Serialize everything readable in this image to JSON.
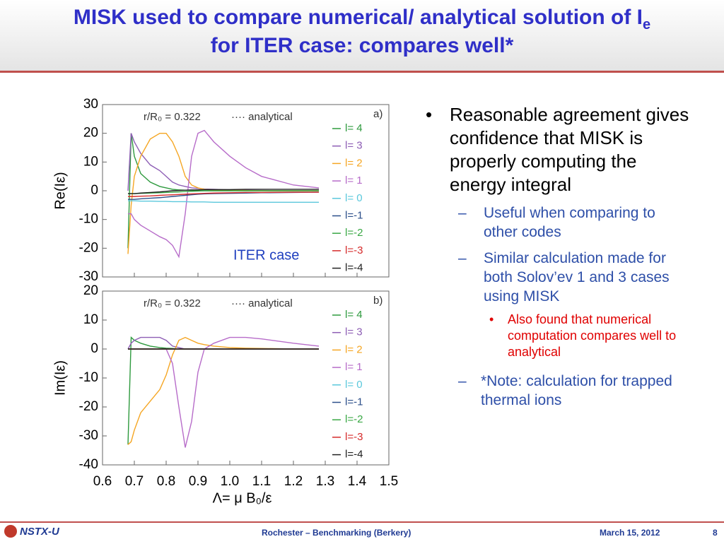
{
  "header": {
    "title": "MISK used to compare numerical/ analytical solution of I",
    "title_sub": "e",
    "title_line2": "for ITER case: compares well*"
  },
  "chart_data": [
    {
      "type": "line",
      "panel_label": "a)",
      "radius_label": "r/R₀ = 0.322",
      "analytical_label": "···· analytical",
      "note": "ITER case",
      "y_label": "Re(Iε)",
      "xlim": [
        0.6,
        1.5
      ],
      "xticks": [
        0.6,
        0.7,
        0.8,
        0.9,
        1,
        1.1,
        1.2,
        1.3,
        1.4,
        1.5
      ],
      "ylim": [
        -30,
        30
      ],
      "yticks": [
        -30,
        -20,
        -10,
        0,
        10,
        20,
        30
      ],
      "x": [
        0.68,
        0.69,
        0.7,
        0.72,
        0.75,
        0.78,
        0.8,
        0.82,
        0.84,
        0.86,
        0.88,
        0.9,
        0.92,
        0.95,
        1.0,
        1.05,
        1.1,
        1.2,
        1.28
      ],
      "series": [
        {
          "name": "l= 4",
          "color": "#2e9a3e",
          "values": [
            -20,
            20,
            12,
            6,
            3,
            1.5,
            1,
            0.5,
            0.3,
            0.2,
            0.1,
            0,
            0,
            0,
            0,
            0,
            0,
            0,
            0
          ]
        },
        {
          "name": "l= 3",
          "color": "#8e5fb5",
          "values": [
            0,
            20,
            17,
            13,
            9,
            7,
            5,
            3,
            2,
            1.5,
            1,
            0.8,
            0.6,
            0.5,
            0.3,
            0.2,
            0.1,
            0,
            0
          ]
        },
        {
          "name": "l= 2",
          "color": "#f5a623",
          "values": [
            -22,
            -5,
            5,
            12,
            18,
            20,
            20,
            17,
            12,
            5,
            2,
            1,
            0.5,
            0.3,
            0.2,
            0.1,
            0,
            0,
            0
          ]
        },
        {
          "name": "l= 1",
          "color": "#b76cc9",
          "values": [
            -8,
            -8,
            -10,
            -12,
            -14,
            -16,
            -17,
            -19,
            -23,
            -8,
            12,
            20,
            21,
            17,
            12,
            8,
            5,
            2,
            1
          ]
        },
        {
          "name": "l= 0",
          "color": "#5bc8dc",
          "values": [
            -3.5,
            -3.5,
            -3.5,
            -3.6,
            -3.6,
            -3.7,
            -3.7,
            -3.8,
            -3.8,
            -3.8,
            -3.9,
            -3.9,
            -3.9,
            -4,
            -4,
            -4,
            -4,
            -4,
            -4
          ]
        },
        {
          "name": "l=-1",
          "color": "#2c4f8a",
          "values": [
            -3,
            -3,
            -3,
            -2.8,
            -2.6,
            -2.4,
            -2.2,
            -2,
            -1.8,
            -1.6,
            -1.4,
            -1.2,
            -1.1,
            -1,
            -0.9,
            -0.8,
            -0.7,
            -0.6,
            -0.5
          ]
        },
        {
          "name": "l=-2",
          "color": "#3aa845",
          "values": [
            -1,
            -1,
            -1,
            -0.9,
            -0.8,
            -0.7,
            -0.6,
            -0.5,
            -0.4,
            -0.3,
            -0.2,
            -0.1,
            0,
            0,
            0,
            0,
            0,
            0,
            0
          ]
        },
        {
          "name": "l=-3",
          "color": "#d62b2b",
          "values": [
            -2,
            -2,
            -2,
            -1.9,
            -1.8,
            -1.6,
            -1.5,
            -1.4,
            -1.3,
            -1.2,
            -1.1,
            -1,
            -0.9,
            -0.8,
            -0.7,
            -0.6,
            -0.6,
            -0.5,
            -0.5
          ]
        },
        {
          "name": "l=-4",
          "color": "#222222",
          "values": [
            -1,
            -1,
            -1,
            -0.8,
            -0.6,
            -0.4,
            -0.2,
            0,
            0.1,
            0.2,
            0.3,
            0.3,
            0.4,
            0.4,
            0.4,
            0.5,
            0.5,
            0.5,
            0.5
          ]
        }
      ]
    },
    {
      "type": "line",
      "panel_label": "b)",
      "radius_label": "r/R₀ = 0.322",
      "analytical_label": "···· analytical",
      "y_label": "Im(Iε)",
      "x_label": "Λ= μ B₀/ε",
      "xlim": [
        0.6,
        1.5
      ],
      "xticks": [
        0.6,
        0.7,
        0.8,
        0.9,
        {
          "value": 1,
          "label": "1.0"
        },
        1.1,
        1.2,
        1.3,
        1.4,
        1.5
      ],
      "ylim": [
        -40,
        20
      ],
      "yticks": [
        -40,
        -30,
        -20,
        -10,
        0,
        10,
        20
      ],
      "x": [
        0.68,
        0.69,
        0.7,
        0.72,
        0.75,
        0.78,
        0.8,
        0.82,
        0.84,
        0.86,
        0.88,
        0.9,
        0.92,
        0.95,
        1.0,
        1.05,
        1.1,
        1.2,
        1.28
      ],
      "series": [
        {
          "name": "l= 4",
          "color": "#2e9a3e",
          "values": [
            -33,
            4,
            3,
            2,
            1,
            0.5,
            0.3,
            0.2,
            0,
            0,
            0,
            0,
            0,
            0,
            0,
            0,
            0,
            0,
            0
          ]
        },
        {
          "name": "l= 3",
          "color": "#8e5fb5",
          "values": [
            0,
            2,
            3,
            4,
            4,
            4,
            3,
            1,
            0.5,
            0,
            0,
            0,
            0,
            0,
            0,
            0,
            0,
            0,
            0
          ]
        },
        {
          "name": "l= 2",
          "color": "#f5a623",
          "values": [
            -33,
            -32,
            -28,
            -22,
            -18,
            -14,
            -9,
            -2,
            3,
            4,
            3,
            2,
            1.5,
            1,
            0.5,
            0.3,
            0.2,
            0,
            0
          ]
        },
        {
          "name": "l= 1",
          "color": "#b76cc9",
          "values": [
            0,
            0,
            0,
            0,
            0,
            0,
            0,
            -5,
            -20,
            -34,
            -25,
            -8,
            0,
            2,
            4,
            4,
            3.5,
            2,
            1
          ]
        },
        {
          "name": "l= 0",
          "color": "#5bc8dc",
          "values": [
            0,
            0,
            0,
            0,
            0,
            0,
            0,
            0,
            0,
            0,
            0,
            0,
            0,
            0,
            0,
            0,
            0,
            0,
            0
          ]
        },
        {
          "name": "l=-1",
          "color": "#2c4f8a",
          "values": [
            0,
            0,
            0,
            0,
            0,
            0,
            0,
            0,
            0,
            0,
            0,
            0,
            0,
            0,
            0,
            0,
            0,
            0,
            0
          ]
        },
        {
          "name": "l=-2",
          "color": "#3aa845",
          "values": [
            0,
            0,
            0,
            0,
            0,
            0,
            0,
            0,
            0,
            0,
            0,
            0,
            0,
            0,
            0,
            0,
            0,
            0,
            0
          ]
        },
        {
          "name": "l=-3",
          "color": "#d62b2b",
          "values": [
            0,
            0,
            0,
            0,
            0,
            0,
            0,
            0,
            0,
            0,
            0,
            0,
            0,
            0,
            0,
            0,
            0,
            0,
            0
          ]
        },
        {
          "name": "l=-4",
          "color": "#222222",
          "values": [
            0,
            0,
            0,
            0,
            0,
            0,
            0,
            0,
            0,
            0,
            0,
            0,
            0,
            0,
            0,
            0,
            0,
            0,
            0
          ]
        }
      ]
    }
  ],
  "bullets": [
    {
      "text": "Reasonable agreement gives confidence that MISK is properly computing the energy integral",
      "sub": [
        {
          "text": "Useful when comparing to other codes"
        },
        {
          "text": "Similar calculation made for both Solov’ev 1 and 3 cases using MISK",
          "sub": [
            {
              "text": "Also found that numerical computation compares well to analytical"
            }
          ]
        },
        {
          "text": "*Note: calculation for trapped thermal ions"
        }
      ]
    }
  ],
  "footer": {
    "logo": "NSTX-U",
    "center": "Rochester – Benchmarking (Berkery)",
    "date": "March 15, 2012",
    "page": "8"
  }
}
